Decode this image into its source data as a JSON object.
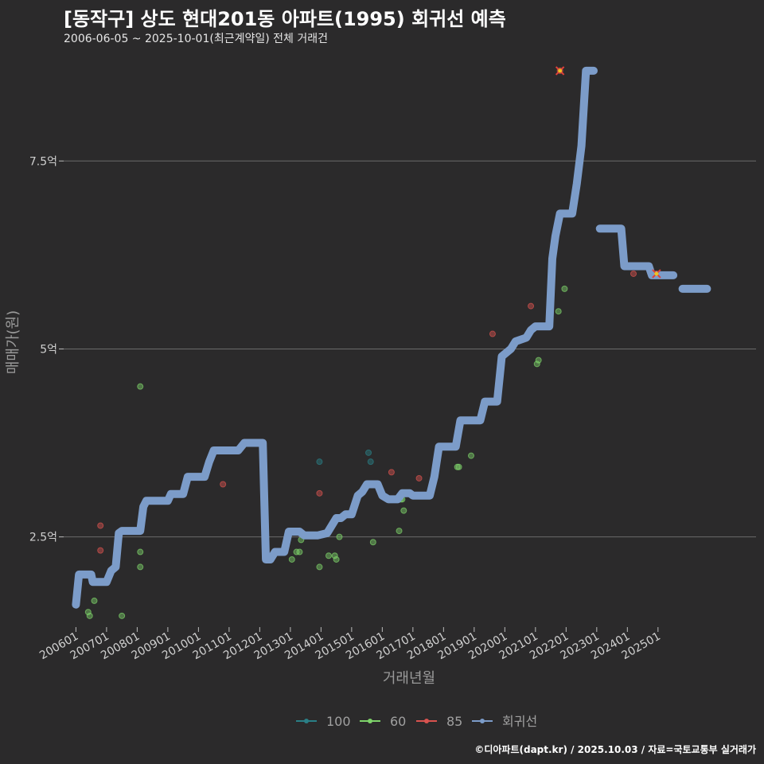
{
  "chart_data": {
    "type": "line",
    "title": "[동작구] 상도 현대201동 아파트(1995) 회귀선 예측",
    "subtitle": "2006-06-05 ~ 2025-10-01(최근계약일) 전체 거래건",
    "xlabel": "거래년월",
    "ylabel": "매매가(원)",
    "caption": "©디아파트(dapt.kr) / 2025.10.03 / 자료=국토교통부 실거래가",
    "x_range": [
      2005.6,
      2028.2
    ],
    "ylim": [
      1.3,
      8.9
    ],
    "y_ticks": [
      {
        "value": 2.5,
        "label": "2.5억"
      },
      {
        "value": 5,
        "label": "5억"
      },
      {
        "value": 7.5,
        "label": "7.5억"
      }
    ],
    "x_ticks": [
      {
        "value": 2006,
        "label": "200601"
      },
      {
        "value": 2007,
        "label": "200701"
      },
      {
        "value": 2008,
        "label": "200801"
      },
      {
        "value": 2009,
        "label": "200901"
      },
      {
        "value": 2010,
        "label": "201001"
      },
      {
        "value": 2011,
        "label": "201101"
      },
      {
        "value": 2012,
        "label": "201201"
      },
      {
        "value": 2013,
        "label": "201301"
      },
      {
        "value": 2014,
        "label": "201401"
      },
      {
        "value": 2015,
        "label": "201501"
      },
      {
        "value": 2016,
        "label": "201601"
      },
      {
        "value": 2017,
        "label": "201701"
      },
      {
        "value": 2018,
        "label": "201801"
      },
      {
        "value": 2019,
        "label": "201901"
      },
      {
        "value": 2020,
        "label": "202001"
      },
      {
        "value": 2021,
        "label": "202101"
      },
      {
        "value": 2022,
        "label": "202201"
      },
      {
        "value": 2023,
        "label": "202301"
      },
      {
        "value": 2024,
        "label": "202401"
      },
      {
        "value": 2025,
        "label": "202501"
      }
    ],
    "legend": [
      {
        "name": "100",
        "color": "#2a7f86"
      },
      {
        "name": "60",
        "color": "#7ed36a"
      },
      {
        "name": "85",
        "color": "#d9534f"
      },
      {
        "name": "회귀선",
        "color": "#7c9cc9"
      }
    ],
    "series": [
      {
        "name": "100",
        "color": "#2a7f86",
        "points": [
          [
            2013.95,
            3.5
          ],
          [
            2015.55,
            3.62
          ],
          [
            2015.62,
            3.5
          ]
        ]
      },
      {
        "name": "60",
        "color": "#7ed36a",
        "points": [
          [
            2006.4,
            1.5
          ],
          [
            2006.45,
            1.45
          ],
          [
            2006.6,
            1.65
          ],
          [
            2007.5,
            1.45
          ],
          [
            2008.1,
            2.3
          ],
          [
            2008.1,
            2.1
          ],
          [
            2008.1,
            4.5
          ],
          [
            2013.05,
            2.2
          ],
          [
            2013.2,
            2.3
          ],
          [
            2013.3,
            2.3
          ],
          [
            2013.35,
            2.46
          ],
          [
            2013.95,
            2.1
          ],
          [
            2014.25,
            2.25
          ],
          [
            2014.45,
            2.25
          ],
          [
            2014.5,
            2.2
          ],
          [
            2014.6,
            2.5
          ],
          [
            2015.7,
            2.43
          ],
          [
            2016.55,
            2.58
          ],
          [
            2016.6,
            3.0
          ],
          [
            2016.65,
            3.0
          ],
          [
            2016.7,
            2.85
          ],
          [
            2018.45,
            3.43
          ],
          [
            2018.5,
            3.43
          ],
          [
            2018.9,
            3.58
          ],
          [
            2021.05,
            4.8
          ],
          [
            2021.1,
            4.85
          ],
          [
            2021.75,
            5.5
          ],
          [
            2021.95,
            5.8
          ]
        ]
      },
      {
        "name": "85",
        "color": "#d9534f",
        "points": [
          [
            2006.8,
            2.65
          ],
          [
            2006.8,
            2.32
          ],
          [
            2010.8,
            3.2
          ],
          [
            2013.95,
            3.08
          ],
          [
            2016.3,
            3.36
          ],
          [
            2017.2,
            3.28
          ],
          [
            2019.6,
            5.2
          ],
          [
            2020.85,
            5.57
          ],
          [
            2021.8,
            8.7
          ],
          [
            2024.2,
            6.0
          ],
          [
            2024.95,
            6.0
          ]
        ],
        "highlighted": [
          [
            2021.8,
            8.7
          ],
          [
            2024.95,
            6.0
          ]
        ]
      }
    ],
    "regression": {
      "name": "회귀선",
      "color": "#7c9cc9",
      "segments": [
        [
          [
            2006.0,
            1.6
          ],
          [
            2006.1,
            2.0
          ],
          [
            2006.5,
            2.0
          ],
          [
            2006.55,
            1.9
          ],
          [
            2007.0,
            1.9
          ],
          [
            2007.15,
            2.05
          ],
          [
            2007.3,
            2.1
          ],
          [
            2007.4,
            2.55
          ],
          [
            2007.5,
            2.58
          ],
          [
            2008.1,
            2.58
          ],
          [
            2008.2,
            2.9
          ],
          [
            2008.3,
            2.98
          ],
          [
            2009.0,
            2.98
          ],
          [
            2009.1,
            3.07
          ],
          [
            2009.5,
            3.07
          ],
          [
            2009.65,
            3.3
          ],
          [
            2010.2,
            3.3
          ],
          [
            2010.35,
            3.5
          ],
          [
            2010.5,
            3.65
          ],
          [
            2011.3,
            3.65
          ],
          [
            2011.5,
            3.75
          ],
          [
            2012.1,
            3.75
          ],
          [
            2012.2,
            2.2
          ],
          [
            2012.35,
            2.2
          ],
          [
            2012.5,
            2.3
          ],
          [
            2012.8,
            2.3
          ],
          [
            2012.95,
            2.57
          ],
          [
            2013.3,
            2.57
          ],
          [
            2013.45,
            2.52
          ],
          [
            2013.9,
            2.52
          ],
          [
            2014.2,
            2.55
          ],
          [
            2014.35,
            2.65
          ],
          [
            2014.5,
            2.75
          ],
          [
            2014.65,
            2.75
          ],
          [
            2014.8,
            2.8
          ],
          [
            2015.0,
            2.8
          ],
          [
            2015.2,
            3.05
          ],
          [
            2015.35,
            3.1
          ],
          [
            2015.5,
            3.2
          ],
          [
            2015.85,
            3.2
          ],
          [
            2016.0,
            3.05
          ],
          [
            2016.2,
            3.0
          ],
          [
            2016.5,
            3.0
          ],
          [
            2016.65,
            3.08
          ],
          [
            2016.9,
            3.08
          ],
          [
            2017.0,
            3.05
          ],
          [
            2017.55,
            3.05
          ],
          [
            2017.7,
            3.3
          ],
          [
            2017.85,
            3.7
          ],
          [
            2018.4,
            3.7
          ],
          [
            2018.55,
            4.05
          ],
          [
            2019.2,
            4.05
          ],
          [
            2019.35,
            4.3
          ],
          [
            2019.75,
            4.3
          ],
          [
            2019.9,
            4.9
          ],
          [
            2020.2,
            5.0
          ],
          [
            2020.35,
            5.1
          ],
          [
            2020.7,
            5.15
          ],
          [
            2020.85,
            5.25
          ],
          [
            2021.0,
            5.3
          ],
          [
            2021.45,
            5.3
          ],
          [
            2021.55,
            6.2
          ],
          [
            2021.65,
            6.5
          ],
          [
            2021.8,
            6.8
          ],
          [
            2022.2,
            6.8
          ],
          [
            2022.35,
            7.2
          ],
          [
            2022.5,
            7.7
          ],
          [
            2022.65,
            8.7
          ],
          [
            2022.9,
            8.7
          ]
        ],
        [
          [
            2023.1,
            6.6
          ],
          [
            2023.8,
            6.6
          ],
          [
            2023.9,
            6.1
          ],
          [
            2024.7,
            6.1
          ],
          [
            2024.8,
            5.98
          ],
          [
            2025.5,
            5.98
          ]
        ],
        [
          [
            2025.8,
            5.8
          ],
          [
            2026.6,
            5.8
          ]
        ]
      ]
    }
  }
}
